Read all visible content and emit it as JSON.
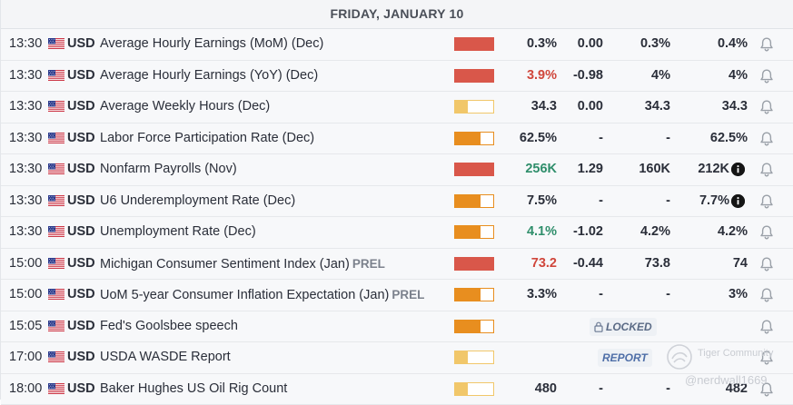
{
  "calendar": {
    "day_header": "FRIDAY, JANUARY 10",
    "colors": {
      "high": "#d9574a",
      "medium": "#e88e1f",
      "low": "#f1c76a",
      "positive": "#2f8e6b",
      "negative": "#d0463b"
    },
    "rows": [
      {
        "time": "13:30",
        "currency": "USD",
        "event": "Average Hourly Earnings (MoM) (Dec)",
        "tag": "",
        "importance": "high",
        "importance_fill": 1.0,
        "actual": "0.3%",
        "actual_color": "neutral",
        "deviation": "0.00",
        "consensus": "0.3%",
        "previous": "0.4%",
        "info": false,
        "status": ""
      },
      {
        "time": "13:30",
        "currency": "USD",
        "event": "Average Hourly Earnings (YoY) (Dec)",
        "tag": "",
        "importance": "high",
        "importance_fill": 1.0,
        "actual": "3.9%",
        "actual_color": "red",
        "deviation": "-0.98",
        "consensus": "4%",
        "previous": "4%",
        "info": false,
        "status": ""
      },
      {
        "time": "13:30",
        "currency": "USD",
        "event": "Average Weekly Hours (Dec)",
        "tag": "",
        "importance": "low",
        "importance_fill": 0.33,
        "actual": "34.3",
        "actual_color": "neutral",
        "deviation": "0.00",
        "consensus": "34.3",
        "previous": "34.3",
        "info": false,
        "status": ""
      },
      {
        "time": "13:30",
        "currency": "USD",
        "event": "Labor Force Participation Rate (Dec)",
        "tag": "",
        "importance": "medium",
        "importance_fill": 0.66,
        "actual": "62.5%",
        "actual_color": "neutral",
        "deviation": "-",
        "consensus": "-",
        "previous": "62.5%",
        "info": false,
        "status": ""
      },
      {
        "time": "13:30",
        "currency": "USD",
        "event": "Nonfarm Payrolls (Nov)",
        "tag": "",
        "importance": "high",
        "importance_fill": 1.0,
        "actual": "256K",
        "actual_color": "green",
        "deviation": "1.29",
        "consensus": "160K",
        "previous": "212K",
        "info": true,
        "status": ""
      },
      {
        "time": "13:30",
        "currency": "USD",
        "event": "U6 Underemployment Rate (Dec)",
        "tag": "",
        "importance": "medium",
        "importance_fill": 0.66,
        "actual": "7.5%",
        "actual_color": "neutral",
        "deviation": "-",
        "consensus": "-",
        "previous": "7.7%",
        "info": true,
        "status": ""
      },
      {
        "time": "13:30",
        "currency": "USD",
        "event": "Unemployment Rate (Dec)",
        "tag": "",
        "importance": "medium",
        "importance_fill": 0.66,
        "actual": "4.1%",
        "actual_color": "green",
        "deviation": "-1.02",
        "consensus": "4.2%",
        "previous": "4.2%",
        "info": false,
        "status": ""
      },
      {
        "time": "15:00",
        "currency": "USD",
        "event": "Michigan Consumer Sentiment Index (Jan)",
        "tag": "PREL",
        "importance": "high",
        "importance_fill": 1.0,
        "actual": "73.2",
        "actual_color": "red",
        "deviation": "-0.44",
        "consensus": "73.8",
        "previous": "74",
        "info": false,
        "status": ""
      },
      {
        "time": "15:00",
        "currency": "USD",
        "event": "UoM 5-year Consumer Inflation Expectation (Jan)",
        "tag": "PREL",
        "importance": "medium",
        "importance_fill": 0.66,
        "actual": "3.3%",
        "actual_color": "neutral",
        "deviation": "-",
        "consensus": "-",
        "previous": "3%",
        "info": false,
        "status": ""
      },
      {
        "time": "15:05",
        "currency": "USD",
        "event": "Fed's Goolsbee speech",
        "tag": "",
        "importance": "medium",
        "importance_fill": 0.66,
        "actual": "",
        "actual_color": "neutral",
        "deviation": "",
        "consensus": "",
        "previous": "",
        "info": false,
        "status": "LOCKED"
      },
      {
        "time": "17:00",
        "currency": "USD",
        "event": "USDA WASDE Report",
        "tag": "",
        "importance": "low",
        "importance_fill": 0.33,
        "actual": "",
        "actual_color": "neutral",
        "deviation": "",
        "consensus": "",
        "previous": "",
        "info": false,
        "status": "REPORT"
      },
      {
        "time": "18:00",
        "currency": "USD",
        "event": "Baker Hughes US Oil Rig Count",
        "tag": "",
        "importance": "low",
        "importance_fill": 0.33,
        "actual": "480",
        "actual_color": "neutral",
        "deviation": "-",
        "consensus": "-",
        "previous": "482",
        "info": false,
        "status": ""
      }
    ]
  },
  "icons": {
    "flag": "us-flag-icon",
    "bell": "bell-icon",
    "info": "info-icon",
    "lock": "lock-icon"
  },
  "watermark": {
    "line1": "Tiger Community",
    "line2": "@nerdwall1669"
  }
}
